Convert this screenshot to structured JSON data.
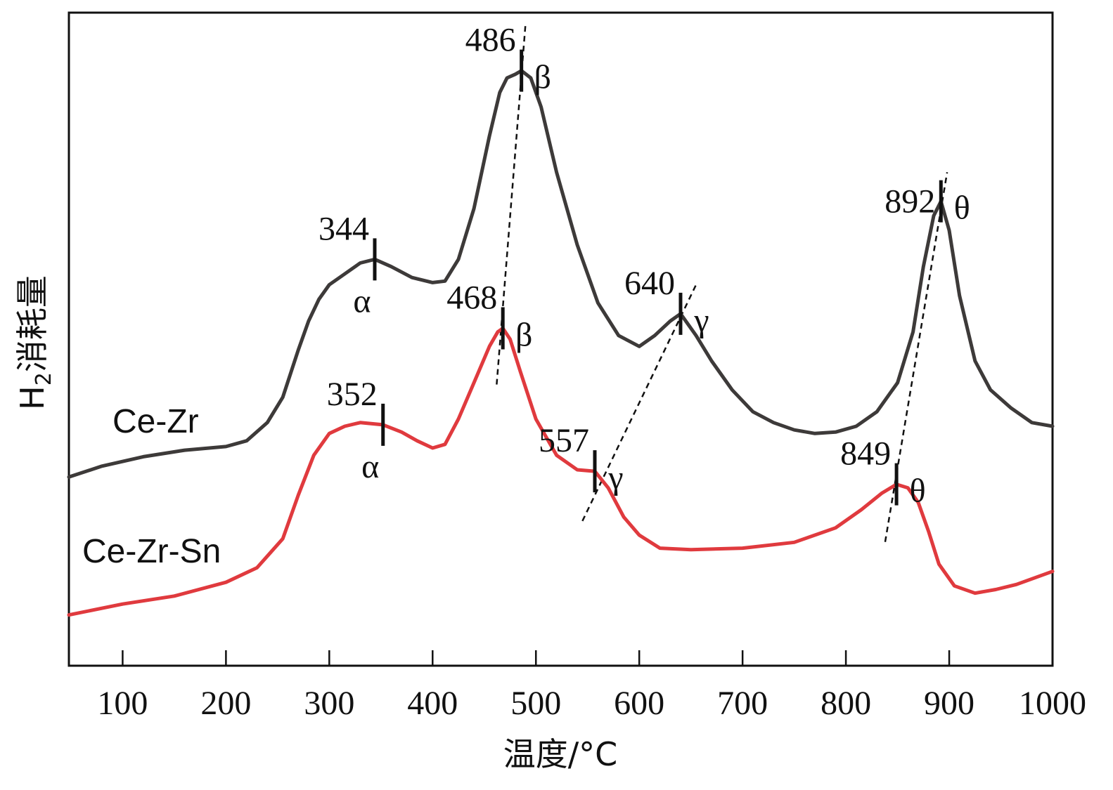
{
  "chart_data": {
    "type": "line",
    "xlabel": "温度/°C",
    "ylabel_main": "H",
    "ylabel_sub": "2",
    "ylabel_rest": "消耗量",
    "xlim": [
      48,
      1000
    ],
    "xticks": [
      100,
      200,
      300,
      400,
      500,
      600,
      700,
      800,
      900,
      1000
    ],
    "series": [
      {
        "name": "Ce-Zr",
        "color": "#3d3a39",
        "x": [
          48,
          80,
          120,
          160,
          200,
          220,
          240,
          255,
          270,
          280,
          290,
          300,
          315,
          330,
          344,
          360,
          380,
          400,
          412,
          425,
          440,
          455,
          465,
          472,
          480,
          486,
          495,
          505,
          520,
          540,
          560,
          580,
          600,
          615,
          630,
          640,
          655,
          670,
          690,
          710,
          730,
          750,
          770,
          790,
          810,
          830,
          850,
          865,
          875,
          885,
          892,
          900,
          910,
          925,
          940,
          960,
          980,
          1000
        ],
        "y": [
          2.6,
          2.75,
          2.88,
          2.97,
          3.02,
          3.1,
          3.35,
          3.7,
          4.35,
          4.75,
          5.05,
          5.25,
          5.4,
          5.55,
          5.6,
          5.5,
          5.35,
          5.28,
          5.3,
          5.6,
          6.3,
          7.3,
          7.9,
          8.1,
          8.15,
          8.2,
          8.1,
          7.7,
          6.8,
          5.8,
          5.0,
          4.55,
          4.4,
          4.55,
          4.75,
          4.85,
          4.55,
          4.2,
          3.8,
          3.5,
          3.35,
          3.25,
          3.2,
          3.22,
          3.3,
          3.5,
          3.9,
          4.6,
          5.5,
          6.2,
          6.4,
          6.0,
          5.1,
          4.2,
          3.8,
          3.55,
          3.35,
          3.3
        ]
      },
      {
        "name": "Ce-Zr-Sn",
        "color": "#e03a3e",
        "x": [
          48,
          100,
          150,
          200,
          230,
          255,
          270,
          285,
          300,
          315,
          330,
          352,
          370,
          385,
          400,
          412,
          425,
          440,
          455,
          463,
          468,
          475,
          485,
          500,
          520,
          540,
          557,
          570,
          585,
          600,
          620,
          650,
          700,
          750,
          790,
          815,
          835,
          849,
          860,
          870,
          880,
          890,
          905,
          925,
          945,
          965,
          1000
        ],
        "y": [
          0.7,
          0.85,
          0.96,
          1.15,
          1.35,
          1.75,
          2.35,
          2.9,
          3.2,
          3.3,
          3.35,
          3.32,
          3.22,
          3.1,
          3.0,
          3.05,
          3.4,
          3.9,
          4.4,
          4.6,
          4.65,
          4.5,
          4.05,
          3.4,
          2.9,
          2.7,
          2.68,
          2.45,
          2.05,
          1.8,
          1.62,
          1.6,
          1.62,
          1.7,
          1.9,
          2.15,
          2.38,
          2.5,
          2.45,
          2.25,
          1.85,
          1.4,
          1.1,
          1.0,
          1.05,
          1.12,
          1.3
        ]
      }
    ],
    "annotations": [
      {
        "series": "Ce-Zr",
        "x": 344,
        "label": "344",
        "greek": "α",
        "label_side": "upper-left",
        "greek_side": "below"
      },
      {
        "series": "Ce-Zr",
        "x": 486,
        "label": "486",
        "greek": "β",
        "label_side": "upper-left",
        "greek_side": "right"
      },
      {
        "series": "Ce-Zr",
        "x": 640,
        "label": "640",
        "greek": "γ",
        "label_side": "upper-left",
        "greek_side": "right"
      },
      {
        "series": "Ce-Zr",
        "x": 892,
        "label": "892",
        "greek": "θ",
        "label_side": "left",
        "greek_side": "right"
      },
      {
        "series": "Ce-Zr-Sn",
        "x": 352,
        "label": "352",
        "greek": "α",
        "label_side": "upper-left",
        "greek_side": "below"
      },
      {
        "series": "Ce-Zr-Sn",
        "x": 468,
        "label": "468",
        "greek": "β",
        "label_side": "upper-left",
        "greek_side": "right"
      },
      {
        "series": "Ce-Zr-Sn",
        "x": 557,
        "label": "557",
        "greek": "γ",
        "label_side": "upper-left",
        "greek_side": "right"
      },
      {
        "series": "Ce-Zr-Sn",
        "x": 849,
        "label": "849",
        "greek": "θ",
        "label_side": "upper-left",
        "greek_side": "right"
      }
    ],
    "shift_lines": [
      {
        "name": "beta-shift",
        "from_x": 462,
        "to_x": 490
      },
      {
        "name": "gamma-shift",
        "from_x": 545,
        "to_x": 655
      },
      {
        "name": "theta-shift",
        "from_x": 838,
        "to_x": 898
      }
    ],
    "grid": false,
    "legend": "none"
  }
}
